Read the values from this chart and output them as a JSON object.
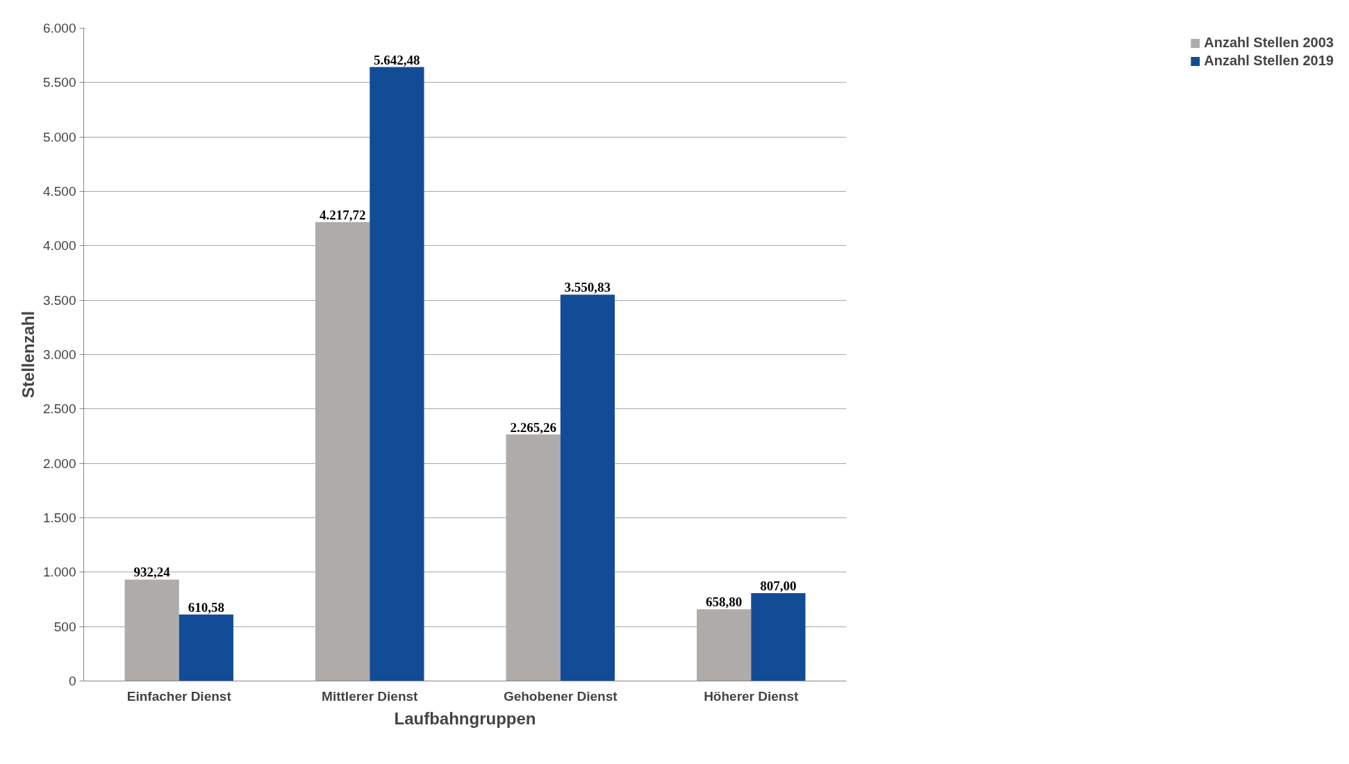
{
  "chart_data": {
    "type": "bar",
    "xlabel": "Laufbahngruppen",
    "ylabel": "Stellenzahl",
    "categories": [
      "Einfacher Dienst",
      "Mittlerer Dienst",
      "Gehobener Dienst",
      "Höherer Dienst"
    ],
    "series": [
      {
        "name": "Anzahl Stellen 2003",
        "color": "#aeaba9",
        "values": [
          932.24,
          4217.72,
          2265.26,
          658.8
        ],
        "value_labels": [
          "932,24",
          "4.217,72",
          "2.265,26",
          "658,80"
        ]
      },
      {
        "name": "Anzahl Stellen 2019",
        "color": "#134c96",
        "values": [
          610.58,
          5642.48,
          3550.83,
          807.0
        ],
        "value_labels": [
          "610,58",
          "5.642,48",
          "3.550,83",
          "807,00"
        ]
      }
    ],
    "ylim": [
      0,
      6000
    ],
    "yticks": [
      {
        "value": 0,
        "label": "0"
      },
      {
        "value": 500,
        "label": "500"
      },
      {
        "value": 1000,
        "label": "1.000"
      },
      {
        "value": 1500,
        "label": "1.500"
      },
      {
        "value": 2000,
        "label": "2.000"
      },
      {
        "value": 2500,
        "label": "2.500"
      },
      {
        "value": 3000,
        "label": "3.000"
      },
      {
        "value": 3500,
        "label": "3.500"
      },
      {
        "value": 4000,
        "label": "4.000"
      },
      {
        "value": 4500,
        "label": "4.500"
      },
      {
        "value": 5000,
        "label": "5.000"
      },
      {
        "value": 5500,
        "label": "5.500"
      },
      {
        "value": 6000,
        "label": "6.000"
      }
    ],
    "grid": "y",
    "legend": "right"
  }
}
